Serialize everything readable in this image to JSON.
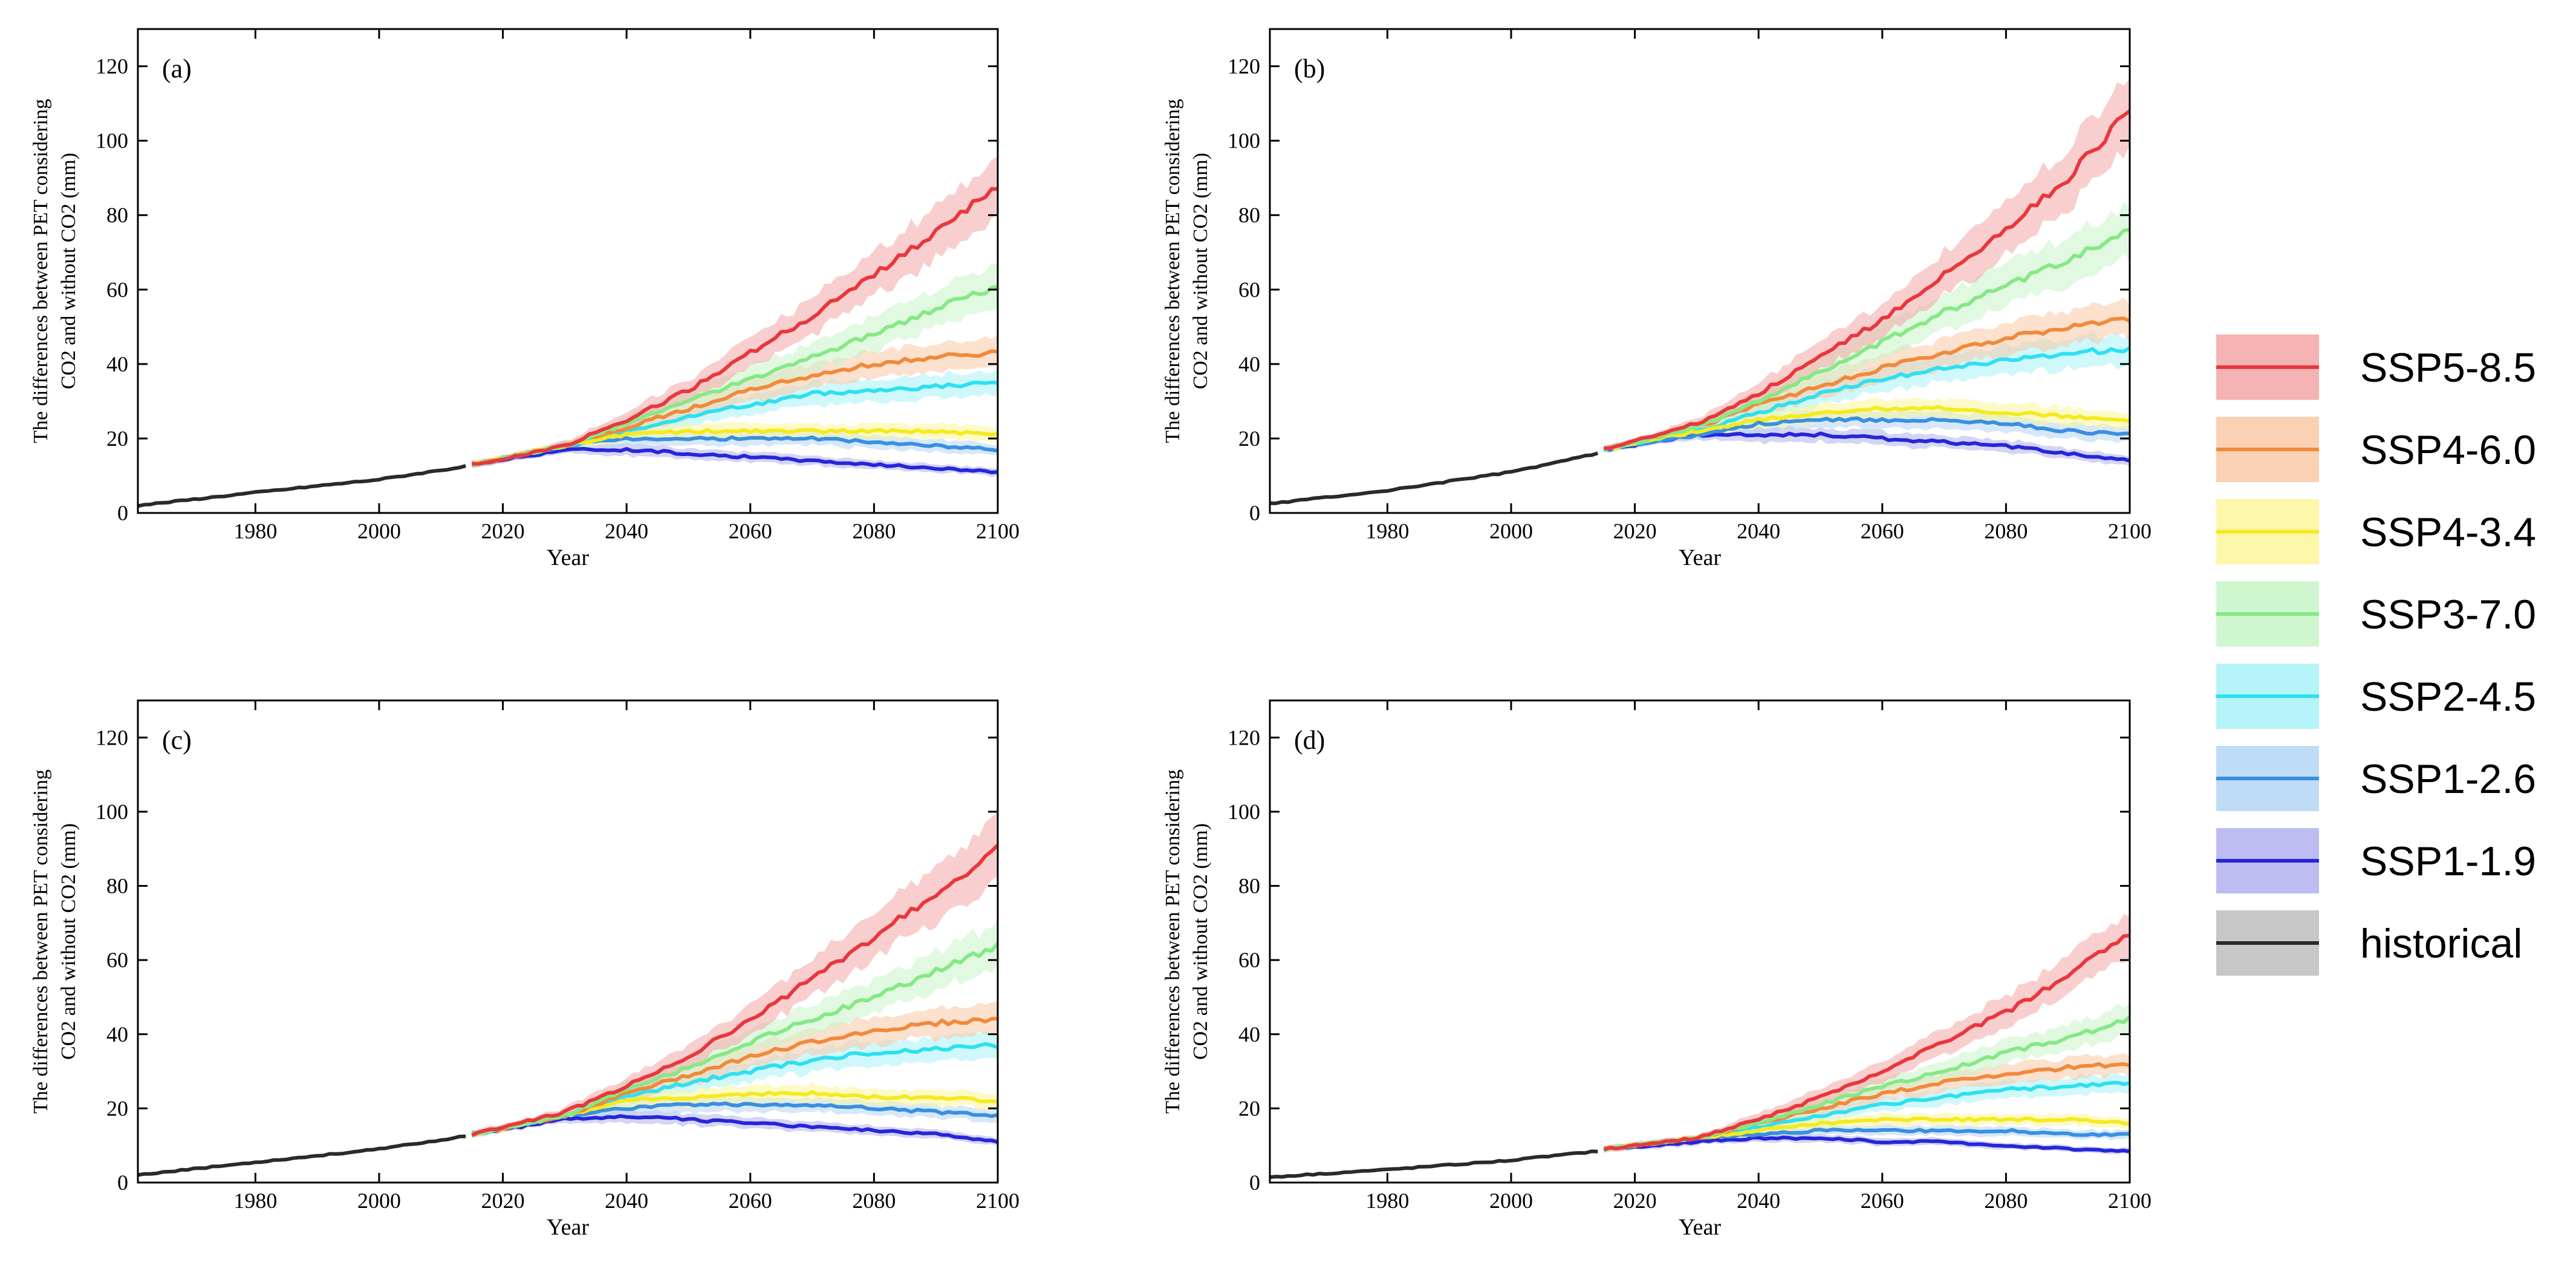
{
  "figure": {
    "y_label_line1": "The differences between PET considering",
    "y_label_line2": "CO2 and without CO2 (mm)",
    "x_label": "Year",
    "xlim": [
      1961,
      2100
    ],
    "ylim": [
      0,
      130
    ],
    "x_ticks": [
      1980,
      2000,
      2020,
      2040,
      2060,
      2080,
      2100
    ],
    "y_ticks": [
      0,
      20,
      40,
      60,
      80,
      100,
      120
    ]
  },
  "legend": [
    {
      "name": "SSP5-8.5",
      "color": "#e8383d",
      "band": "#f4a6a6"
    },
    {
      "name": "SSP4-6.0",
      "color": "#f08a3c",
      "band": "#f9c9a6"
    },
    {
      "name": "SSP4-3.4",
      "color": "#f5ea1e",
      "band": "#fbf59a"
    },
    {
      "name": "SSP3-7.0",
      "color": "#86e886",
      "band": "#c8f4c8"
    },
    {
      "name": "SSP2-4.5",
      "color": "#2ee0f0",
      "band": "#a8f2f8"
    },
    {
      "name": "SSP1-2.6",
      "color": "#3a8fe0",
      "band": "#b4d6f4"
    },
    {
      "name": "SSP1-1.9",
      "color": "#2626d8",
      "band": "#b0b0f0"
    },
    {
      "name": "historical",
      "color": "#2a2a2a",
      "band": "#bdbdbd"
    }
  ],
  "chart_data": [
    {
      "type": "line",
      "panel": "(a)",
      "historical": {
        "x": [
          1961,
          1980,
          2000,
          2014
        ],
        "y": [
          2,
          5.5,
          9,
          12.5
        ]
      },
      "series": [
        {
          "name": "SSP5-8.5",
          "values": {
            "2015": 13,
            "2030": 18,
            "2040": 25,
            "2050": 33,
            "2060": 43,
            "2070": 53,
            "2080": 64,
            "2090": 75,
            "2100": 88
          }
        },
        {
          "name": "SSP4-6.0",
          "values": {
            "2015": 13,
            "2030": 18,
            "2040": 23,
            "2050": 28,
            "2060": 33,
            "2070": 37,
            "2080": 40,
            "2090": 42,
            "2100": 43
          }
        },
        {
          "name": "SSP4-3.4",
          "values": {
            "2015": 13,
            "2030": 18,
            "2040": 21,
            "2050": 22,
            "2060": 22,
            "2070": 22,
            "2080": 22,
            "2090": 22,
            "2100": 21
          }
        },
        {
          "name": "SSP3-7.0",
          "values": {
            "2015": 13,
            "2030": 18,
            "2040": 24,
            "2050": 30,
            "2060": 36,
            "2070": 42,
            "2080": 48,
            "2090": 55,
            "2100": 61
          }
        },
        {
          "name": "SSP2-4.5",
          "values": {
            "2015": 13,
            "2030": 18,
            "2040": 22,
            "2050": 26,
            "2060": 29,
            "2070": 32,
            "2080": 33,
            "2090": 34,
            "2100": 35
          }
        },
        {
          "name": "SSP1-2.6",
          "values": {
            "2015": 13,
            "2030": 18,
            "2040": 20,
            "2050": 20,
            "2060": 20,
            "2070": 20,
            "2080": 19,
            "2090": 18,
            "2100": 17
          }
        },
        {
          "name": "SSP1-1.9",
          "values": {
            "2015": 13,
            "2030": 17,
            "2040": 17,
            "2050": 16,
            "2060": 15,
            "2070": 14,
            "2080": 13,
            "2090": 12,
            "2100": 11
          }
        }
      ]
    },
    {
      "type": "line",
      "panel": "(b)",
      "historical": {
        "x": [
          1961,
          1980,
          2000,
          2014
        ],
        "y": [
          2.5,
          6,
          11,
          16
        ]
      },
      "series": [
        {
          "name": "SSP5-8.5",
          "values": {
            "2015": 17,
            "2030": 24,
            "2040": 32,
            "2050": 42,
            "2060": 52,
            "2070": 64,
            "2080": 76,
            "2090": 90,
            "2100": 108
          }
        },
        {
          "name": "SSP4-6.0",
          "values": {
            "2015": 17,
            "2030": 23,
            "2040": 29,
            "2050": 34,
            "2060": 39,
            "2070": 43,
            "2080": 47,
            "2090": 50,
            "2100": 52
          }
        },
        {
          "name": "SSP4-3.4",
          "values": {
            "2015": 17,
            "2030": 22,
            "2040": 25,
            "2050": 27,
            "2060": 28,
            "2070": 28,
            "2080": 27,
            "2090": 26,
            "2100": 25
          }
        },
        {
          "name": "SSP3-7.0",
          "values": {
            "2015": 17,
            "2030": 23,
            "2040": 30,
            "2050": 38,
            "2060": 46,
            "2070": 54,
            "2080": 61,
            "2090": 68,
            "2100": 76
          }
        },
        {
          "name": "SSP2-4.5",
          "values": {
            "2015": 17,
            "2030": 22,
            "2040": 27,
            "2050": 32,
            "2060": 36,
            "2070": 39,
            "2080": 41,
            "2090": 43,
            "2100": 44
          }
        },
        {
          "name": "SSP1-2.6",
          "values": {
            "2015": 17,
            "2030": 21,
            "2040": 24,
            "2050": 25,
            "2060": 25,
            "2070": 25,
            "2080": 24,
            "2090": 22,
            "2100": 21
          }
        },
        {
          "name": "SSP1-1.9",
          "values": {
            "2015": 17,
            "2030": 21,
            "2040": 21,
            "2050": 21,
            "2060": 20,
            "2070": 19,
            "2080": 18,
            "2090": 16,
            "2100": 14
          }
        }
      ]
    },
    {
      "type": "line",
      "panel": "(c)",
      "historical": {
        "x": [
          1961,
          1980,
          2000,
          2014
        ],
        "y": [
          2,
          5.5,
          9,
          12.5
        ]
      },
      "series": [
        {
          "name": "SSP5-8.5",
          "values": {
            "2015": 13,
            "2030": 19,
            "2040": 26,
            "2050": 34,
            "2060": 44,
            "2070": 55,
            "2080": 66,
            "2090": 78,
            "2100": 90
          }
        },
        {
          "name": "SSP4-6.0",
          "values": {
            "2015": 13,
            "2030": 18,
            "2040": 24,
            "2050": 29,
            "2060": 34,
            "2070": 38,
            "2080": 41,
            "2090": 43,
            "2100": 44
          }
        },
        {
          "name": "SSP4-3.4",
          "values": {
            "2015": 13,
            "2030": 18,
            "2040": 22,
            "2050": 23,
            "2060": 24,
            "2070": 24,
            "2080": 23,
            "2090": 23,
            "2100": 22
          }
        },
        {
          "name": "SSP3-7.0",
          "values": {
            "2015": 13,
            "2030": 18,
            "2040": 25,
            "2050": 31,
            "2060": 38,
            "2070": 44,
            "2080": 50,
            "2090": 57,
            "2100": 64
          }
        },
        {
          "name": "SSP2-4.5",
          "values": {
            "2015": 13,
            "2030": 18,
            "2040": 23,
            "2050": 27,
            "2060": 30,
            "2070": 33,
            "2080": 35,
            "2090": 36,
            "2100": 37
          }
        },
        {
          "name": "SSP1-2.6",
          "values": {
            "2015": 13,
            "2030": 18,
            "2040": 20,
            "2050": 21,
            "2060": 21,
            "2070": 21,
            "2080": 20,
            "2090": 19,
            "2100": 18
          }
        },
        {
          "name": "SSP1-1.9",
          "values": {
            "2015": 13,
            "2030": 17,
            "2040": 18,
            "2050": 17,
            "2060": 16,
            "2070": 15,
            "2080": 14,
            "2090": 13,
            "2100": 11
          }
        }
      ]
    },
    {
      "type": "line",
      "panel": "(d)",
      "historical": {
        "x": [
          1961,
          1980,
          2000,
          2014
        ],
        "y": [
          1.5,
          3.5,
          6,
          8.5
        ]
      },
      "series": [
        {
          "name": "SSP5-8.5",
          "values": {
            "2015": 9,
            "2030": 12,
            "2040": 17,
            "2050": 23,
            "2060": 30,
            "2070": 38,
            "2080": 46,
            "2090": 56,
            "2100": 67
          }
        },
        {
          "name": "SSP4-6.0",
          "values": {
            "2015": 9,
            "2030": 12,
            "2040": 16,
            "2050": 20,
            "2060": 24,
            "2070": 27,
            "2080": 29,
            "2090": 31,
            "2100": 32
          }
        },
        {
          "name": "SSP4-3.4",
          "values": {
            "2015": 9,
            "2030": 12,
            "2040": 14,
            "2050": 16,
            "2060": 17,
            "2070": 17,
            "2080": 17,
            "2090": 17,
            "2100": 16
          }
        },
        {
          "name": "SSP3-7.0",
          "values": {
            "2015": 9,
            "2030": 12,
            "2040": 16,
            "2050": 21,
            "2060": 26,
            "2070": 30,
            "2080": 35,
            "2090": 39,
            "2100": 44
          }
        },
        {
          "name": "SSP2-4.5",
          "values": {
            "2015": 9,
            "2030": 12,
            "2040": 15,
            "2050": 18,
            "2060": 21,
            "2070": 23,
            "2080": 25,
            "2090": 26,
            "2100": 27
          }
        },
        {
          "name": "SSP1-2.6",
          "values": {
            "2015": 9,
            "2030": 12,
            "2040": 13,
            "2050": 14,
            "2060": 14,
            "2070": 14,
            "2080": 14,
            "2090": 13,
            "2100": 13
          }
        },
        {
          "name": "SSP1-1.9",
          "values": {
            "2015": 9,
            "2030": 11,
            "2040": 12,
            "2050": 12,
            "2060": 11,
            "2070": 11,
            "2080": 10,
            "2090": 9,
            "2100": 8.5
          }
        }
      ]
    }
  ]
}
